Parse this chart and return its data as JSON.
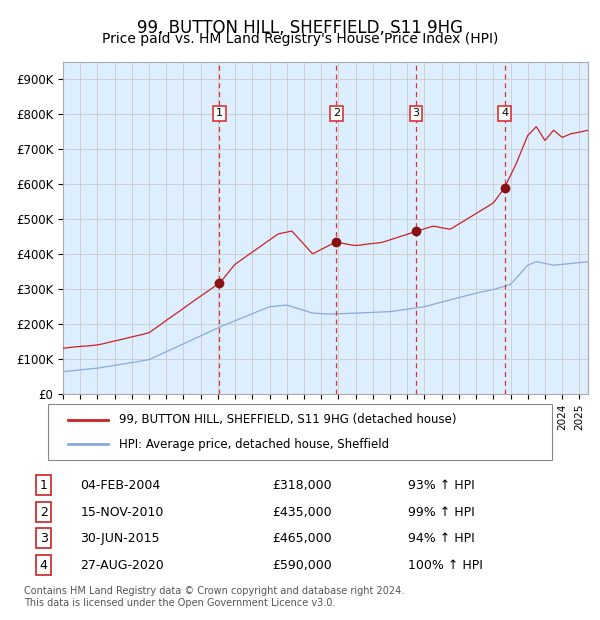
{
  "title": "99, BUTTON HILL, SHEFFIELD, S11 9HG",
  "subtitle": "Price paid vs. HM Land Registry's House Price Index (HPI)",
  "title_fontsize": 12,
  "subtitle_fontsize": 10,
  "background_color": "#ffffff",
  "plot_bg_color": "#ddeeff",
  "ylim": [
    0,
    950000
  ],
  "yticks": [
    0,
    100000,
    200000,
    300000,
    400000,
    500000,
    600000,
    700000,
    800000,
    900000
  ],
  "ytick_labels": [
    "£0",
    "£100K",
    "£200K",
    "£300K",
    "£400K",
    "£500K",
    "£600K",
    "£700K",
    "£800K",
    "£900K"
  ],
  "sale_dates_num": [
    2004.09,
    2010.88,
    2015.5,
    2020.65
  ],
  "sale_prices": [
    318000,
    435000,
    465000,
    590000
  ],
  "sale_labels": [
    "1",
    "2",
    "3",
    "4"
  ],
  "red_line_color": "#cc2222",
  "blue_line_color": "#88aadd",
  "dot_color": "#881111",
  "vline_color": "#dd3333",
  "grid_color": "#cccccc",
  "legend_red_label": "99, BUTTON HILL, SHEFFIELD, S11 9HG (detached house)",
  "legend_blue_label": "HPI: Average price, detached house, Sheffield",
  "table_rows": [
    [
      "1",
      "04-FEB-2004",
      "£318,000",
      "93% ↑ HPI"
    ],
    [
      "2",
      "15-NOV-2010",
      "£435,000",
      "99% ↑ HPI"
    ],
    [
      "3",
      "30-JUN-2015",
      "£465,000",
      "94% ↑ HPI"
    ],
    [
      "4",
      "27-AUG-2020",
      "£590,000",
      "100% ↑ HPI"
    ]
  ],
  "footnote": "Contains HM Land Registry data © Crown copyright and database right 2024.\nThis data is licensed under the Open Government Licence v3.0.",
  "xstart": 1995.0,
  "xend": 2025.5
}
